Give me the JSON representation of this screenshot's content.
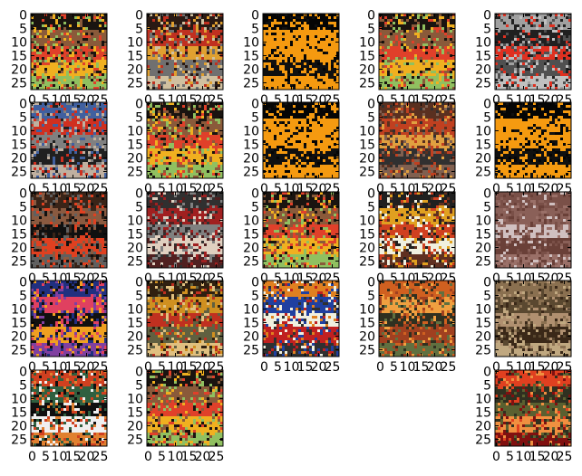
{
  "chart_data": {
    "type": "image-grid",
    "layout": {
      "rows": 5,
      "cols": 5
    },
    "axes": {
      "xticks": [
        0,
        5,
        10,
        15,
        20,
        25
      ],
      "yticks": [
        0,
        5,
        10,
        15,
        20,
        25
      ],
      "xtick_labels": [
        "0",
        "5",
        "10",
        "15",
        "20",
        "25"
      ],
      "ytick_labels": [
        "0",
        "5",
        "10",
        "15",
        "20",
        "25"
      ],
      "xlim": [
        -0.5,
        27.5
      ],
      "ylim": [
        27.5,
        -0.5
      ],
      "grid": false
    },
    "panels": [
      {
        "row": 0,
        "col": 0,
        "palette": [
          "#1a1410",
          "#8a5a3a",
          "#e0402a",
          "#f0b020",
          "#90c060"
        ]
      },
      {
        "row": 0,
        "col": 1,
        "palette": [
          "#2a1a14",
          "#c03020",
          "#e0a030",
          "#707070",
          "#d0c0a0"
        ]
      },
      {
        "row": 0,
        "col": 2,
        "palette": [
          "#050505",
          "#f59a10",
          "#f59a10",
          "#101010",
          "#f59a10"
        ]
      },
      {
        "row": 0,
        "col": 3,
        "palette": [
          "#1a1410",
          "#8a5a3a",
          "#e0402a",
          "#f0b020",
          "#90c060"
        ]
      },
      {
        "row": 0,
        "col": 4,
        "palette": [
          "#a0a0a0",
          "#202020",
          "#e03020",
          "#505050",
          "#c0c0c0"
        ]
      },
      {
        "row": 1,
        "col": 0,
        "palette": [
          "#4060a0",
          "#d03020",
          "#808080",
          "#202020",
          "#c0b0a0"
        ]
      },
      {
        "row": 1,
        "col": 1,
        "palette": [
          "#1a1410",
          "#8a5a3a",
          "#e0402a",
          "#f0b020",
          "#90c060"
        ]
      },
      {
        "row": 1,
        "col": 2,
        "palette": [
          "#050505",
          "#f59a10",
          "#f59a10",
          "#101010",
          "#f59a10"
        ]
      },
      {
        "row": 1,
        "col": 3,
        "palette": [
          "#5a3020",
          "#c04020",
          "#e0a040",
          "#303030",
          "#806050"
        ]
      },
      {
        "row": 1,
        "col": 4,
        "palette": [
          "#050505",
          "#f59a10",
          "#f59a10",
          "#101010",
          "#f59a10"
        ]
      },
      {
        "row": 2,
        "col": 0,
        "palette": [
          "#3a2418",
          "#8a5a40",
          "#101010",
          "#e04020",
          "#606060"
        ]
      },
      {
        "row": 2,
        "col": 1,
        "palette": [
          "#303030",
          "#a02020",
          "#808080",
          "#e0d0c0",
          "#502020"
        ]
      },
      {
        "row": 2,
        "col": 2,
        "palette": [
          "#1a1410",
          "#8a5a3a",
          "#e0402a",
          "#f0b020",
          "#90c060"
        ]
      },
      {
        "row": 2,
        "col": 3,
        "palette": [
          "#202020",
          "#e0a020",
          "#d04020",
          "#f0f0e0",
          "#603020"
        ]
      },
      {
        "row": 2,
        "col": 4,
        "palette": [
          "#7a5048",
          "#8a6058",
          "#d0c0c0",
          "#6a4038",
          "#9a7068"
        ]
      },
      {
        "row": 3,
        "col": 0,
        "palette": [
          "#203080",
          "#e04060",
          "#101010",
          "#f0a020",
          "#8040a0"
        ]
      },
      {
        "row": 3,
        "col": 1,
        "palette": [
          "#302010",
          "#d09020",
          "#c03020",
          "#606040",
          "#e0c080"
        ]
      },
      {
        "row": 3,
        "col": 2,
        "palette": [
          "#e08020",
          "#2040a0",
          "#f0f0e0",
          "#c02020",
          "#303030"
        ]
      },
      {
        "row": 3,
        "col": 3,
        "palette": [
          "#d06020",
          "#f0a040",
          "#303020",
          "#a04020",
          "#607040"
        ]
      },
      {
        "row": 3,
        "col": 4,
        "palette": [
          "#8a7050",
          "#5a4830",
          "#b09070",
          "#3a2818",
          "#c0a880"
        ]
      },
      {
        "row": 4,
        "col": 0,
        "palette": [
          "#d04020",
          "#306040",
          "#101010",
          "#f0f0f0",
          "#e08030"
        ]
      },
      {
        "row": 4,
        "col": 1,
        "palette": [
          "#1a1410",
          "#8a5a3a",
          "#e0402a",
          "#f0b020",
          "#90c060"
        ]
      },
      {
        "row": 4,
        "col": 4,
        "palette": [
          "#e04020",
          "#303020",
          "#5a6030",
          "#f09040",
          "#801010"
        ]
      }
    ]
  }
}
